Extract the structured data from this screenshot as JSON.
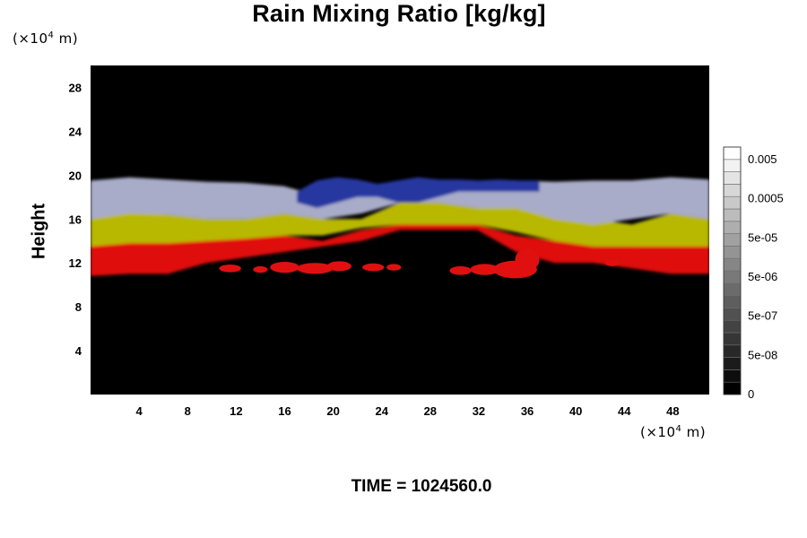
{
  "chart_data": {
    "type": "heatmap",
    "title": "Rain Mixing Ratio [kg/kg]",
    "ylabel": "Height",
    "xlabel": "",
    "x_unit": {
      "prefix": "(×10",
      "exp": "4",
      "suffix": " m)"
    },
    "y_unit": {
      "prefix": "(×10",
      "exp": "4",
      "suffix": " m)"
    },
    "xlim": [
      0,
      51
    ],
    "ylim": [
      0,
      30
    ],
    "x_ticks": [
      4,
      8,
      12,
      16,
      20,
      24,
      28,
      32,
      36,
      40,
      44,
      48
    ],
    "y_ticks": [
      4,
      8,
      12,
      16,
      20,
      24,
      28
    ],
    "grid": false,
    "colorbar": {
      "placement": "right",
      "scale": "log",
      "labels": [
        "0",
        "5e-08",
        "5e-07",
        "5e-06",
        "5e-05",
        "0.0005",
        "0.005"
      ],
      "levels": 20,
      "colors": [
        "#000000",
        "#ffffff"
      ]
    },
    "field_colors": {
      "background": "#000000",
      "red": "#e01010",
      "yellow": "#b8b800",
      "silver": "#a8acc8",
      "blue": "#2838a0"
    },
    "layers": [
      {
        "name": "red",
        "x_start": 0,
        "x_end": 51,
        "y_bottom": [
          10.8,
          11.0,
          11.0,
          12.0,
          12.5,
          13.0,
          13.5,
          14.0,
          15.0,
          15.0,
          15.0,
          13.0,
          12.0,
          12.0,
          11.5,
          11.0,
          11.0
        ],
        "y_top": [
          14.0,
          14.5,
          14.2,
          14.0,
          14.3,
          14.5,
          14.0,
          15.0,
          15.5,
          15.5,
          15.5,
          14.5,
          14.0,
          13.5,
          13.5,
          14.0,
          13.8
        ]
      },
      {
        "name": "yellow",
        "x_start": 0,
        "x_end": 51,
        "y_bottom": [
          13.5,
          13.8,
          13.8,
          14.0,
          14.2,
          14.5,
          14.5,
          15.2,
          15.5,
          15.5,
          15.5,
          14.8,
          14.0,
          13.5,
          13.5,
          13.5,
          13.5
        ],
        "y_top": [
          16.0,
          16.6,
          16.4,
          16.0,
          16.0,
          16.5,
          16.0,
          16.0,
          17.5,
          17.5,
          17.0,
          17.0,
          16.5,
          16.0,
          15.5,
          16.5,
          16.0
        ]
      },
      {
        "name": "silver",
        "x_start": 0,
        "x_end": 51,
        "y_bottom": [
          16.0,
          16.5,
          16.4,
          16.0,
          16.0,
          16.5,
          16.0,
          16.5,
          17.5,
          17.5,
          17.0,
          17.0,
          16.0,
          15.5,
          16.0,
          16.5,
          16.0
        ],
        "y_top": [
          19.5,
          19.8,
          19.6,
          19.4,
          19.3,
          19.0,
          18.0,
          18.5,
          19.0,
          19.0,
          19.0,
          19.5,
          19.4,
          19.5,
          19.5,
          19.8,
          19.6
        ]
      },
      {
        "name": "blue",
        "x_start": 17,
        "x_end": 37,
        "y_bottom": [
          17.5,
          17.0,
          17.5,
          18.0,
          18.0,
          17.5,
          17.5,
          18.0,
          18.5,
          18.5,
          18.5,
          18.5,
          18.5
        ],
        "y_top": [
          18.5,
          19.5,
          19.8,
          19.6,
          19.2,
          19.5,
          19.8,
          19.6,
          19.6,
          19.5,
          19.6,
          19.5,
          19.5
        ]
      }
    ],
    "rain_blobs": [
      {
        "x": 11.5,
        "y": 11.5,
        "rx": 0.9,
        "ry": 0.35
      },
      {
        "x": 14.0,
        "y": 11.4,
        "rx": 0.6,
        "ry": 0.3
      },
      {
        "x": 16.0,
        "y": 11.6,
        "rx": 1.2,
        "ry": 0.5
      },
      {
        "x": 18.5,
        "y": 11.5,
        "rx": 1.5,
        "ry": 0.5
      },
      {
        "x": 20.5,
        "y": 11.7,
        "rx": 1.0,
        "ry": 0.45
      },
      {
        "x": 23.3,
        "y": 11.6,
        "rx": 0.9,
        "ry": 0.35
      },
      {
        "x": 25.0,
        "y": 11.6,
        "rx": 0.6,
        "ry": 0.3
      },
      {
        "x": 30.5,
        "y": 11.3,
        "rx": 0.9,
        "ry": 0.4
      },
      {
        "x": 32.5,
        "y": 11.4,
        "rx": 1.2,
        "ry": 0.5
      },
      {
        "x": 35.0,
        "y": 11.4,
        "rx": 1.8,
        "ry": 0.8
      },
      {
        "x": 36.0,
        "y": 12.3,
        "rx": 1.0,
        "ry": 1.0
      },
      {
        "x": 43.0,
        "y": 12.0,
        "rx": 0.6,
        "ry": 0.3
      }
    ]
  },
  "time_label": "TIME = 1024560.0"
}
